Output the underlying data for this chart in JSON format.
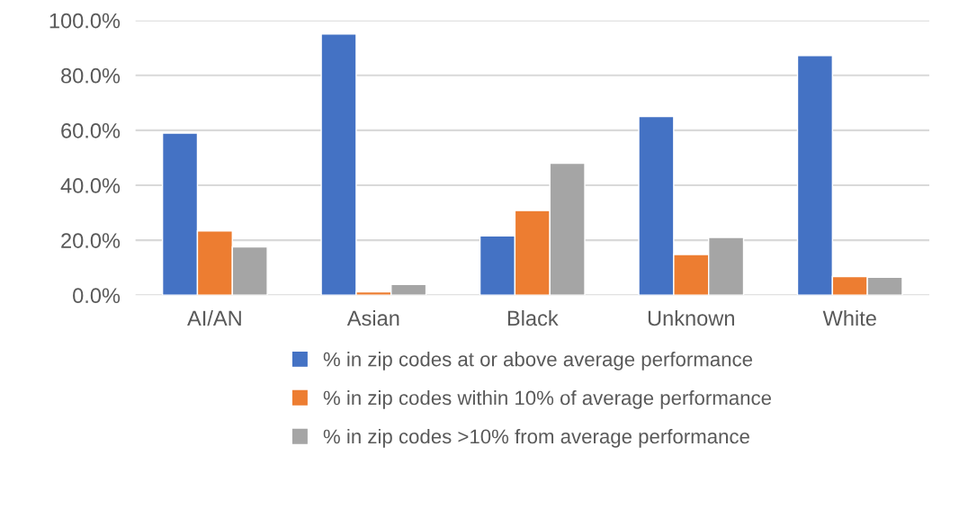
{
  "chart_data": {
    "type": "bar",
    "categories": [
      "AI/AN",
      "Asian",
      "Black",
      "Unknown",
      "White"
    ],
    "series": [
      {
        "name": "% in zip codes at or above average performance",
        "color": "#4472c4",
        "values": [
          59.0,
          95.0,
          21.6,
          65.0,
          87.2
        ]
      },
      {
        "name": "% in zip codes within 10% of average performance",
        "color": "#ed7d31",
        "values": [
          23.4,
          1.2,
          30.8,
          14.8,
          6.8
        ]
      },
      {
        "name": "% in zip codes >10% from average performance",
        "color": "#a5a5a5",
        "values": [
          17.6,
          3.9,
          48.0,
          21.0,
          6.5
        ]
      }
    ],
    "ylim": [
      0,
      100
    ],
    "yticks": [
      {
        "value": 0,
        "label": "0.0%"
      },
      {
        "value": 20,
        "label": "20.0%"
      },
      {
        "value": 40,
        "label": "40.0%"
      },
      {
        "value": 60,
        "label": "60.0%"
      },
      {
        "value": 80,
        "label": "80.0%"
      },
      {
        "value": 100,
        "label": "100.0%"
      }
    ],
    "grid": "y",
    "legend": "bottom"
  }
}
